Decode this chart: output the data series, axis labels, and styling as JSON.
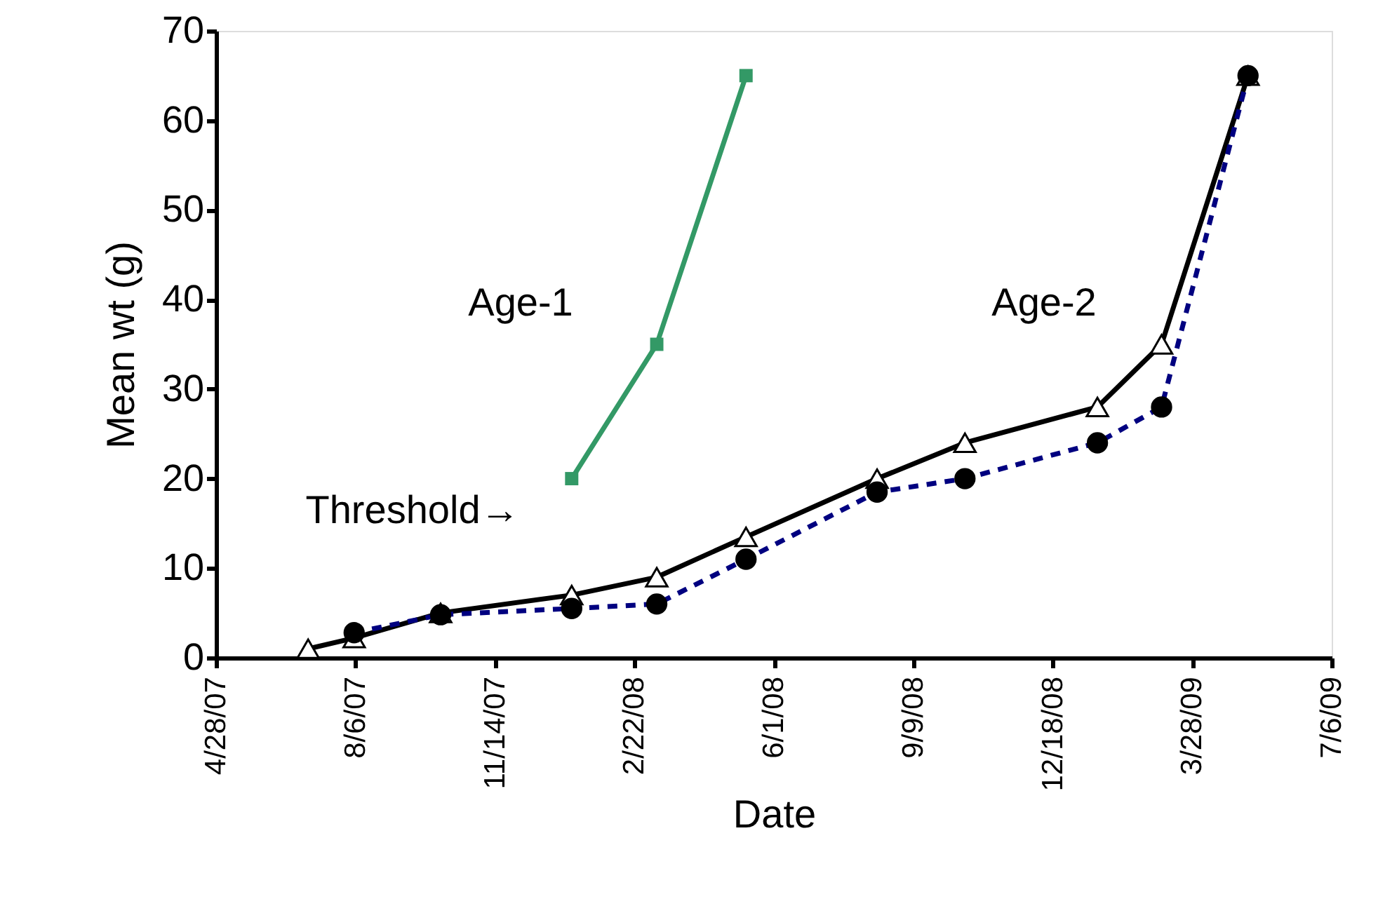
{
  "chart_data": {
    "type": "line",
    "xlabel": "Date",
    "ylabel": "Mean wt (g)",
    "xlim": [
      "2007-04-28",
      "2009-07-06"
    ],
    "xticks": [
      {
        "value": "2007-04-28",
        "label": "4/28/07"
      },
      {
        "value": "2007-08-06",
        "label": "8/6/07"
      },
      {
        "value": "2007-11-14",
        "label": "11/14/07"
      },
      {
        "value": "2008-02-22",
        "label": "2/22/08"
      },
      {
        "value": "2008-06-01",
        "label": "6/1/08"
      },
      {
        "value": "2008-09-09",
        "label": "9/9/08"
      },
      {
        "value": "2008-12-18",
        "label": "12/18/08"
      },
      {
        "value": "2009-03-28",
        "label": "3/28/09"
      },
      {
        "value": "2009-07-06",
        "label": "7/6/09"
      }
    ],
    "ylim": [
      0,
      70
    ],
    "yticks": [
      0,
      10,
      20,
      30,
      40,
      50,
      60,
      70
    ],
    "series": [
      {
        "color": "#000000",
        "marker": "triangle",
        "line_style": "solid",
        "x": [
          "2007-07-03",
          "2007-08-05",
          "2007-10-06",
          "2008-01-08",
          "2008-03-09",
          "2008-05-12",
          "2008-08-14",
          "2008-10-16",
          "2009-01-19",
          "2009-03-06",
          "2009-05-07"
        ],
        "values": [
          1,
          2.2,
          5,
          7,
          9,
          13.5,
          20,
          24,
          28,
          35,
          65
        ]
      },
      {
        "color": "#000080",
        "marker": "circle",
        "line_style": "dashed",
        "x": [
          "2007-08-05",
          "2007-10-06",
          "2008-01-08",
          "2008-03-09",
          "2008-05-12",
          "2008-08-14",
          "2008-10-16",
          "2009-01-19",
          "2009-03-06",
          "2009-05-07"
        ],
        "values": [
          2.8,
          4.8,
          5.5,
          6,
          11,
          18.5,
          20,
          24,
          28,
          65
        ]
      },
      {
        "color": "#339966",
        "marker": "square",
        "line_style": "solid",
        "x": [
          "2008-01-08",
          "2008-03-09",
          "2008-05-12"
        ],
        "values": [
          20,
          35,
          65
        ]
      }
    ],
    "annotations": [
      "Age-1",
      "Age-2",
      "Threshold→"
    ]
  }
}
